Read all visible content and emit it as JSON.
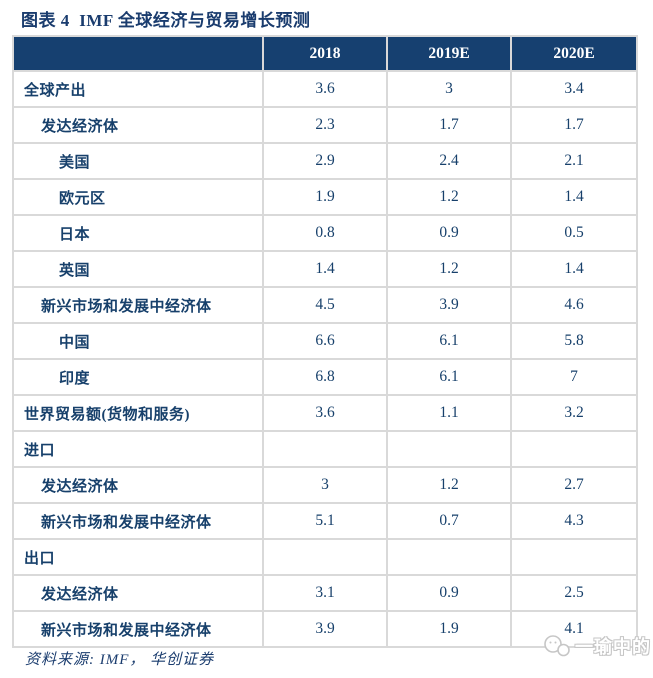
{
  "figure_label": "图表 4",
  "chart_data": {
    "type": "table",
    "title": "图表 4  IMF 全球经济与贸易增长预测",
    "columns": [
      "",
      "2018",
      "2019E",
      "2020E"
    ],
    "rows": [
      {
        "label": "全球产出",
        "indent": 0,
        "values": [
          "3.6",
          "3",
          "3.4"
        ]
      },
      {
        "label": "发达经济体",
        "indent": 1,
        "values": [
          "2.3",
          "1.7",
          "1.7"
        ]
      },
      {
        "label": "美国",
        "indent": 2,
        "values": [
          "2.9",
          "2.4",
          "2.1"
        ]
      },
      {
        "label": "欧元区",
        "indent": 2,
        "values": [
          "1.9",
          "1.2",
          "1.4"
        ]
      },
      {
        "label": "日本",
        "indent": 2,
        "values": [
          "0.8",
          "0.9",
          "0.5"
        ]
      },
      {
        "label": "英国",
        "indent": 2,
        "values": [
          "1.4",
          "1.2",
          "1.4"
        ]
      },
      {
        "label": "新兴市场和发展中经济体",
        "indent": 1,
        "values": [
          "4.5",
          "3.9",
          "4.6"
        ]
      },
      {
        "label": "中国",
        "indent": 2,
        "values": [
          "6.6",
          "6.1",
          "5.8"
        ]
      },
      {
        "label": "印度",
        "indent": 2,
        "values": [
          "6.8",
          "6.1",
          "7"
        ]
      },
      {
        "label": "世界贸易额(货物和服务)",
        "indent": 0,
        "values": [
          "3.6",
          "1.1",
          "3.2"
        ]
      },
      {
        "label": "进口",
        "indent": 0,
        "values": [
          "",
          "",
          ""
        ]
      },
      {
        "label": "发达经济体",
        "indent": 1,
        "values": [
          "3",
          "1.2",
          "2.7"
        ]
      },
      {
        "label": "新兴市场和发展中经济体",
        "indent": 1,
        "values": [
          "5.1",
          "0.7",
          "4.3"
        ]
      },
      {
        "label": "出口",
        "indent": 0,
        "values": [
          "",
          "",
          ""
        ]
      },
      {
        "label": "发达经济体",
        "indent": 1,
        "values": [
          "3.1",
          "0.9",
          "2.5"
        ]
      },
      {
        "label": "新兴市场和发展中经济体",
        "indent": 1,
        "values": [
          "3.9",
          "1.9",
          "4.1"
        ]
      }
    ],
    "source_note": "资料来源: IMF， 华创证券",
    "legend_position": "none",
    "grid": true
  },
  "watermark": {
    "text": "一瑜中的",
    "icon": "chat-bubbles-icon"
  },
  "colors": {
    "header_bg": "#164070",
    "body_text": "#17406B",
    "border": "#D9D9D9",
    "watermark": "#C6C6C6"
  }
}
